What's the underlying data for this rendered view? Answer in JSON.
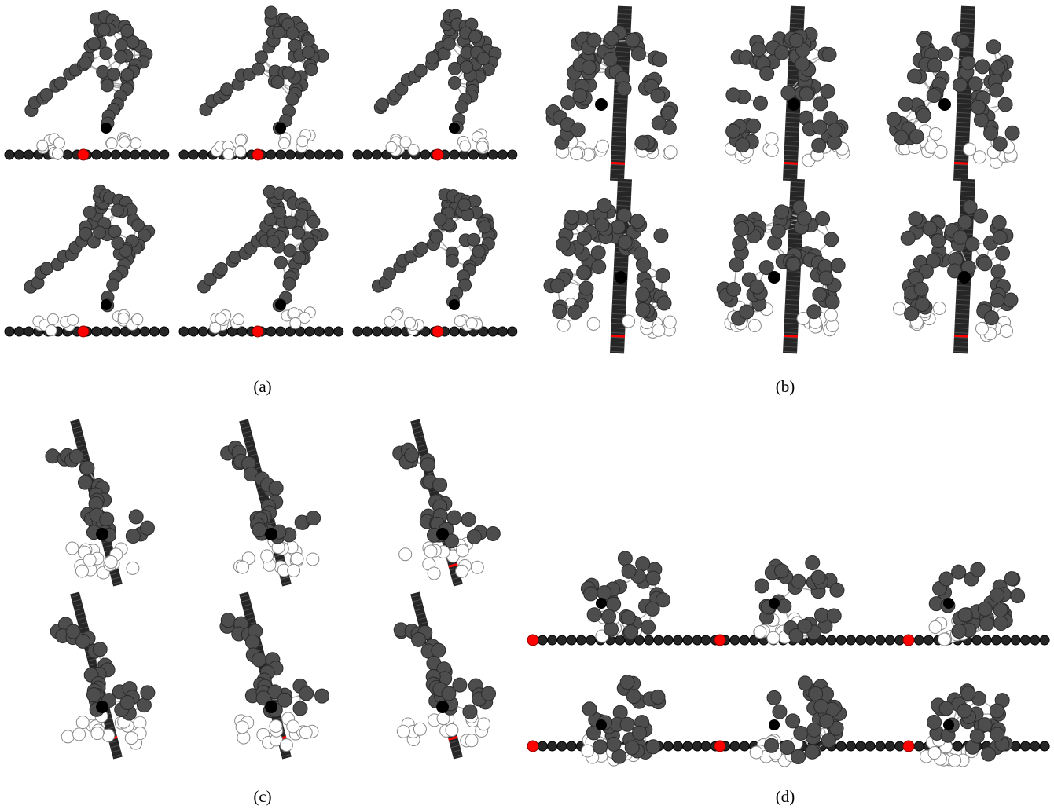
{
  "figure": {
    "colors": {
      "protein_bead": "#4d4d4d",
      "protein_bead_edge": "#2a2a2a",
      "bond": "#a6a6a6",
      "highlight_bead": "#ffffff",
      "black_bead": "#000000",
      "dna_bead": "#262626",
      "dna_marker": "#ff0000"
    },
    "panels": [
      {
        "id": "a",
        "label": "(a)",
        "view": "side",
        "snapshots": 6
      },
      {
        "id": "b",
        "label": "(b)",
        "view": "front",
        "snapshots": 6
      },
      {
        "id": "c",
        "label": "(c)",
        "view": "tilted",
        "snapshots": 6
      },
      {
        "id": "d",
        "label": "(d)",
        "view": "side-alt",
        "snapshots": 6
      }
    ]
  }
}
